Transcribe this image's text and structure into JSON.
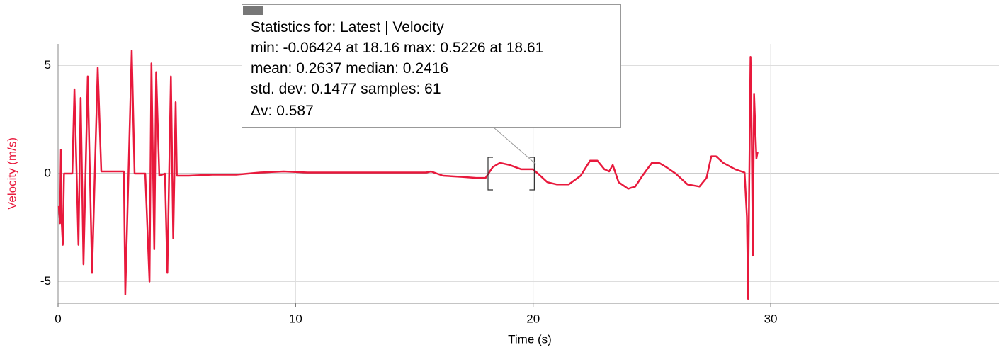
{
  "chart_data": {
    "type": "line",
    "x_label": "Time (s)",
    "y_label": "Velocity (m/s)",
    "color": "#e8193c",
    "x": [
      0.03,
      0.08,
      0.12,
      0.15,
      0.2,
      0.25,
      0.3,
      0.45,
      0.6,
      0.69,
      0.86,
      0.95,
      1.07,
      1.25,
      1.43,
      1.67,
      1.82,
      2.2,
      2.77,
      2.83,
      3.1,
      3.22,
      3.67,
      3.85,
      3.93,
      4.05,
      4.13,
      4.26,
      4.5,
      4.6,
      4.75,
      4.85,
      4.95,
      5.0,
      5.5,
      6.5,
      7.5,
      8.5,
      9.5,
      10.5,
      11.5,
      12.5,
      13.5,
      14.5,
      15.5,
      15.7,
      16.2,
      17.0,
      17.6,
      18.0,
      18.3,
      18.6,
      19.0,
      19.5,
      20.0,
      20.3,
      20.6,
      21.0,
      21.5,
      22.0,
      22.4,
      22.7,
      23.0,
      23.2,
      23.35,
      23.6,
      24.0,
      24.3,
      24.6,
      25.0,
      25.3,
      25.6,
      26.0,
      26.5,
      27.0,
      27.3,
      27.5,
      27.7,
      28.0,
      28.5,
      28.9,
      29.0,
      29.05,
      29.1,
      29.15,
      29.2,
      29.25,
      29.3,
      29.4,
      29.45
    ],
    "values": [
      -1.5,
      -2.3,
      1.1,
      -2.2,
      -3.3,
      0,
      0,
      0,
      0,
      3.9,
      -3.3,
      3.5,
      -4.2,
      4.5,
      -4.6,
      4.9,
      0.1,
      0.1,
      0.1,
      -5.6,
      5.7,
      0,
      0,
      -5.0,
      5.1,
      -3.5,
      4.7,
      -0.1,
      0,
      -4.6,
      4.5,
      -3.0,
      3.3,
      -0.1,
      -0.1,
      -0.05,
      -0.05,
      0.05,
      0.1,
      0.05,
      0.05,
      0.05,
      0.05,
      0.05,
      0.05,
      0.1,
      -0.1,
      -0.15,
      -0.2,
      -0.2,
      0.3,
      0.5,
      0.4,
      0.2,
      0.2,
      -0.1,
      -0.4,
      -0.5,
      -0.5,
      -0.1,
      0.6,
      0.6,
      0.2,
      0.1,
      0.4,
      -0.4,
      -0.7,
      -0.6,
      -0.1,
      0.5,
      0.5,
      0.3,
      0,
      -0.5,
      -0.6,
      -0.2,
      0.8,
      0.8,
      0.5,
      0.2,
      0.05,
      -2,
      -5.8,
      0,
      5.4,
      2,
      -3.8,
      3.7,
      0.7,
      1.0
    ],
    "xlim": [
      0,
      39.6
    ],
    "ylim": [
      -6,
      6
    ],
    "xticks": [
      0,
      10,
      20,
      30
    ],
    "yticks": [
      -5,
      0,
      5
    ],
    "grid": true,
    "selection": [
      18.1,
      20.05
    ],
    "annotation": [
      "Statistics for: Latest | Velocity",
      "min: -0.06424 at 18.16 max: 0.5226 at 18.61",
      "mean: 0.2637 median: 0.2416",
      "std. dev: 0.1477 samples: 61",
      "Δv: 0.587"
    ]
  }
}
